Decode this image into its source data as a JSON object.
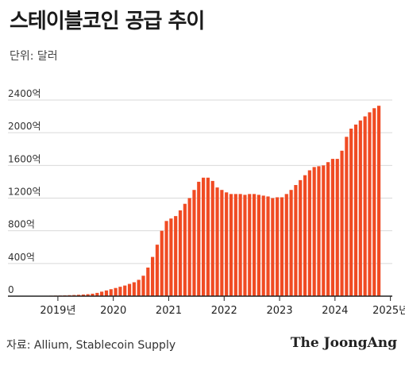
{
  "header": {
    "title": "스테이블코인 공급 추이",
    "unit_label": "단위: 달러"
  },
  "footer": {
    "source": "자료: Allium, Stablecoin Supply",
    "brand": "The JoongAng"
  },
  "colors": {
    "bar": "#f04b23",
    "grid": "#d9d9d9",
    "axis": "#222222"
  },
  "chart_data": {
    "type": "bar",
    "title": "스테이블코인 공급 추이",
    "ylabel": "단위: 달러",
    "ylim": [
      0,
      2400
    ],
    "yticks": [
      {
        "value": 0,
        "label": "0"
      },
      {
        "value": 400,
        "label": "400억"
      },
      {
        "value": 800,
        "label": "800억"
      },
      {
        "value": 1200,
        "label": "1200억"
      },
      {
        "value": 1600,
        "label": "1600억"
      },
      {
        "value": 2000,
        "label": "2000억"
      },
      {
        "value": 2400,
        "label": "2400억"
      }
    ],
    "grid": true,
    "xticks": [
      {
        "index": 6,
        "label": "2019년"
      },
      {
        "index": 18,
        "label": "2020"
      },
      {
        "index": 30,
        "label": "2021"
      },
      {
        "index": 42,
        "label": "2022"
      },
      {
        "index": 54,
        "label": "2023"
      },
      {
        "index": 66,
        "label": "2024"
      },
      {
        "index": 78,
        "label": "2025년"
      }
    ],
    "unit": "억 달러",
    "period": "monthly",
    "values": [
      2,
      3,
      4,
      5,
      6,
      7,
      8,
      10,
      12,
      14,
      17,
      20,
      24,
      30,
      40,
      55,
      70,
      85,
      100,
      115,
      130,
      150,
      170,
      200,
      250,
      350,
      480,
      630,
      800,
      920,
      950,
      980,
      1050,
      1130,
      1200,
      1300,
      1400,
      1450,
      1450,
      1410,
      1330,
      1300,
      1270,
      1250,
      1250,
      1250,
      1240,
      1250,
      1250,
      1240,
      1230,
      1220,
      1200,
      1210,
      1210,
      1250,
      1300,
      1360,
      1420,
      1480,
      1540,
      1580,
      1590,
      1600,
      1640,
      1680,
      1680,
      1780,
      1950,
      2050,
      2100,
      2150,
      2200,
      2250,
      2300,
      2330
    ]
  }
}
